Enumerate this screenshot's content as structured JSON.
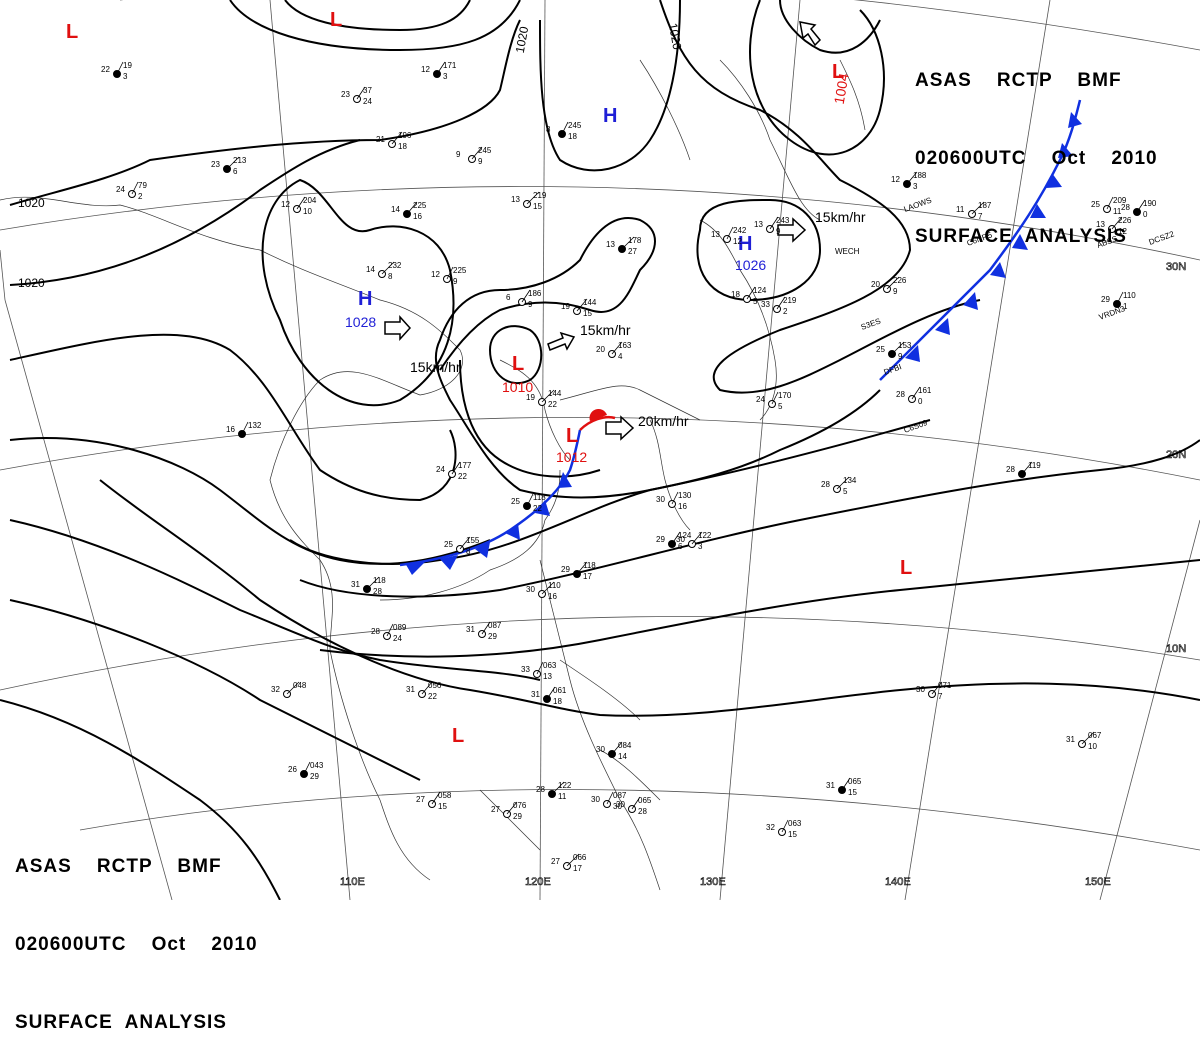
{
  "header": {
    "line1": "ASAS    RCTP    BMF",
    "line2": "020600UTC    Oct    2010",
    "line3": "SURFACE  ANALYSIS"
  },
  "colors": {
    "isobar": "#000000",
    "grid": "#555555",
    "high": "#1f1fd6",
    "low": "#e01010",
    "front_cold": "#1030e0",
    "front_warm": "#e01010",
    "station": "#000000"
  },
  "lon_labels": [
    "110E",
    "120E",
    "130E",
    "140E",
    "150E"
  ],
  "lat_labels": [
    "30N",
    "20N",
    "10N"
  ],
  "isobar_labels": [
    "1020",
    "1020",
    "1020",
    "1020"
  ],
  "pressure_centers": [
    {
      "type": "H",
      "value": "1028"
    },
    {
      "type": "H",
      "value": "1026"
    },
    {
      "type": "H",
      "value": ""
    },
    {
      "type": "L",
      "value": "1004"
    },
    {
      "type": "L",
      "value": "1010"
    },
    {
      "type": "L",
      "value": "1012"
    },
    {
      "type": "L",
      "value": ""
    },
    {
      "type": "L",
      "value": ""
    },
    {
      "type": "L",
      "value": ""
    },
    {
      "type": "L",
      "value": ""
    }
  ],
  "motion_labels": [
    "15km/hr",
    "15km/hr",
    "15km/hr",
    "20km/hr"
  ],
  "stations": [
    [
      "22",
      "19",
      "3"
    ],
    [
      "23",
      "37",
      "24"
    ],
    [
      "21",
      "196",
      "18"
    ],
    [
      "23",
      "213",
      "6"
    ],
    [
      "24",
      "79",
      "2"
    ],
    [
      "12",
      "204",
      "10"
    ],
    [
      "14",
      "225",
      "16"
    ],
    [
      "14",
      "232",
      "8"
    ],
    [
      "12",
      "225",
      "9"
    ],
    [
      "12",
      "171",
      "3"
    ],
    [
      "9",
      "245",
      "9"
    ],
    [
      "13",
      "219",
      "15"
    ],
    [
      "8",
      "245",
      "18"
    ],
    [
      "6",
      "186",
      "9"
    ],
    [
      "19",
      "144",
      "15"
    ],
    [
      "13",
      "178",
      "27"
    ],
    [
      "13",
      "242",
      "12"
    ],
    [
      "13",
      "243",
      "9"
    ],
    [
      "12",
      "188",
      "3"
    ],
    [
      "11",
      "187",
      "7"
    ],
    [
      "25",
      "209",
      "11"
    ],
    [
      "28",
      "190",
      "0"
    ],
    [
      "13",
      "226",
      "12"
    ],
    [
      "20",
      "226",
      "9"
    ],
    [
      "29",
      "110",
      "1"
    ],
    [
      "33",
      "219",
      "2"
    ],
    [
      "20",
      "163",
      "4"
    ],
    [
      "25",
      "153",
      "9"
    ],
    [
      "24",
      "170",
      "5"
    ],
    [
      "28",
      "161",
      "0"
    ],
    [
      "28",
      "119",
      ""
    ],
    [
      "28",
      "134",
      "5"
    ],
    [
      "30",
      "130",
      "16"
    ],
    [
      "29",
      "124",
      "6"
    ],
    [
      "30",
      "122",
      "3"
    ],
    [
      "19",
      "144",
      "22"
    ],
    [
      "16",
      "132",
      ""
    ],
    [
      "24",
      "177",
      "22"
    ],
    [
      "25",
      "155",
      "8"
    ],
    [
      "31",
      "118",
      "28"
    ],
    [
      "28",
      "089",
      "24"
    ],
    [
      "31",
      "087",
      "29"
    ],
    [
      "29",
      "118",
      "17"
    ],
    [
      "30",
      "110",
      "16"
    ],
    [
      "33",
      "063",
      "13"
    ],
    [
      "31",
      "061",
      "18"
    ],
    [
      "31",
      "056",
      "22"
    ],
    [
      "32",
      "048",
      ""
    ],
    [
      "26",
      "043",
      "29"
    ],
    [
      "27",
      "058",
      "15"
    ],
    [
      "27",
      "076",
      "29"
    ],
    [
      "28",
      "122",
      "11"
    ],
    [
      "30",
      "087",
      "30"
    ],
    [
      "30",
      "065",
      "28"
    ],
    [
      "30",
      "084",
      "14"
    ],
    [
      "27",
      "066",
      "17"
    ],
    [
      "32",
      "063",
      "15"
    ],
    [
      "31",
      "065",
      "15"
    ],
    [
      "30",
      "071",
      "7"
    ],
    [
      "31",
      "067",
      "10"
    ],
    [
      "25",
      "118",
      "22"
    ],
    [
      "18",
      "124",
      "5"
    ]
  ],
  "station_ids": [
    "LAOWS",
    "C6NR5",
    "ABSS",
    "DCSZ2",
    "WECH",
    "VRDN3",
    "S3ES",
    "DFBI",
    "C6S09"
  ]
}
